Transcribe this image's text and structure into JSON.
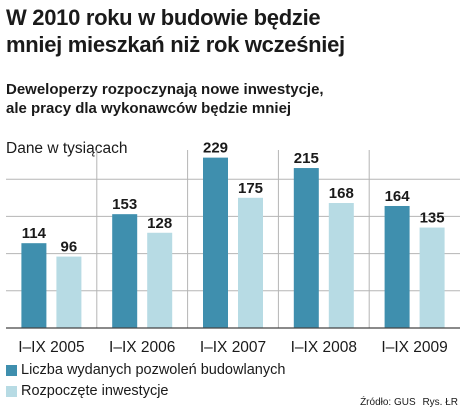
{
  "title": {
    "line1": "W 2010 roku w budowie będzie",
    "line2": "mniej mieszkań niż rok wcześniej"
  },
  "subtitle": {
    "line1": "Deweloperzy rozpoczynają nowe inwestycje,",
    "line2": "ale pracy dla wykonawców będzie mniej"
  },
  "unit_label": "Dane w tysiącach",
  "source": {
    "text": "Źródło: GUS",
    "author": "Rys. ŁR"
  },
  "colors": {
    "permits": "#3f8fae",
    "started": "#b7dbe4",
    "grid": "#b5b5b5",
    "axis": "#444444"
  },
  "chart_data": {
    "type": "bar",
    "title": "W 2010 roku w budowie będzie mniej mieszkań niż rok wcześniej",
    "categories": [
      "I–IX 2005",
      "I–IX 2006",
      "I–IX 2007",
      "I–IX 2008",
      "I–IX 2009"
    ],
    "series": [
      {
        "name": "Liczba wydanych pozwoleń budowlanych",
        "values": [
          114,
          153,
          229,
          215,
          164
        ]
      },
      {
        "name": "Rozpoczęte inwestycje",
        "values": [
          96,
          128,
          175,
          168,
          135
        ]
      }
    ],
    "ylim": [
      0,
      250
    ],
    "grid": true,
    "legend_position": "bottom-left"
  }
}
